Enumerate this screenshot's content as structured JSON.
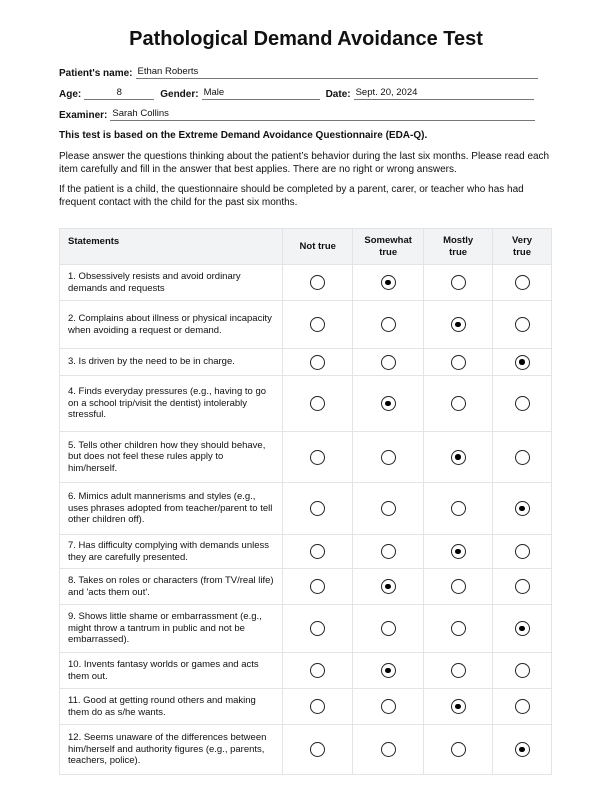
{
  "title": "Pathological Demand Avoidance Test",
  "fields": {
    "patient_name_label": "Patient's name:",
    "patient_name": "Ethan Roberts",
    "age_label": "Age:",
    "age": "8",
    "gender_label": "Gender:",
    "gender": "Male",
    "date_label": "Date:",
    "date": "Sept. 20, 2024",
    "examiner_label": "Examiner:",
    "examiner": "Sarah Collins"
  },
  "intro": {
    "bold": "This test is based on the Extreme Demand Avoidance Questionnaire (EDA-Q).",
    "p1": "Please answer the questions thinking about the patient’s behavior during the last six months. Please read each item carefully and fill in the answer that best applies. There are no right or wrong answers.",
    "p2": "If the patient is a child, the questionnaire should be completed by a parent, carer, or teacher who has had frequent contact with the child for the past six months."
  },
  "table": {
    "headers": [
      "Statements",
      "Not true",
      "Somewhat true",
      "Mostly true",
      "Very true"
    ],
    "rows": [
      {
        "text": "1. Obsessively resists and avoid ordinary demands and requests",
        "answer": 1
      },
      {
        "text": "2. Complains about illness or physical incapacity when avoiding a request or demand.",
        "answer": 2
      },
      {
        "text": "3. Is driven by the need to be in charge.",
        "answer": 3
      },
      {
        "text": "4. Finds everyday pressures (e.g., having to go on a school trip/visit the dentist) intolerably stressful.",
        "answer": 1
      },
      {
        "text": "5. Tells other children how they should behave, but does not feel these rules apply to him/herself.",
        "answer": 2
      },
      {
        "text": "6. Mimics adult mannerisms and styles (e.g., uses phrases adopted from teacher/parent to tell other children off).",
        "answer": 3
      },
      {
        "text": "7. Has difficulty complying with demands unless they are carefully presented.",
        "answer": 2
      },
      {
        "text": "8. Takes on roles or characters (from TV/real life) and 'acts them out'.",
        "answer": 1
      },
      {
        "text": "9. Shows little shame or embarrassment (e.g., might throw a tantrum in public and not be embarrassed).",
        "answer": 3
      },
      {
        "text": "10. Invents fantasy worlds or games and acts them out.",
        "answer": 1
      },
      {
        "text": "11. Good at getting round others and making them do as s/he wants.",
        "answer": 2
      },
      {
        "text": "12. Seems unaware of the differences between him/herself and authority figures (e.g., parents, teachers, police).",
        "answer": 3
      }
    ]
  }
}
